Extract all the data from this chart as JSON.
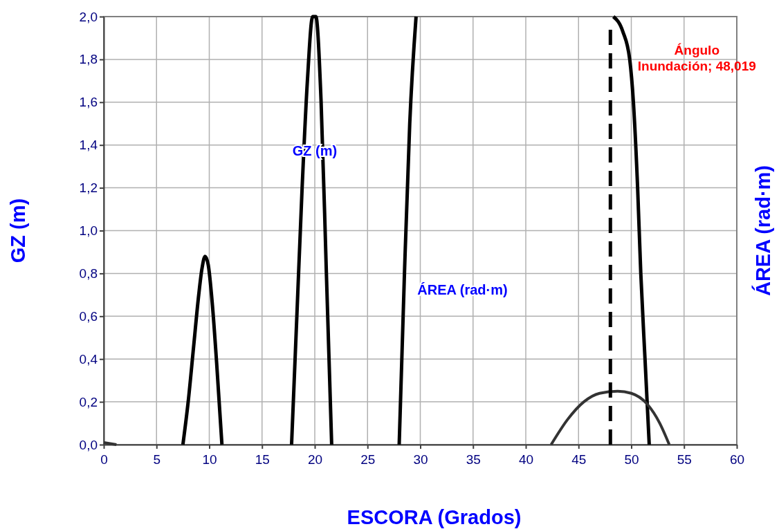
{
  "chart_data": {
    "type": "line",
    "xlabel": "ESCORA (Grados)",
    "ylabel": "GZ (m)",
    "y2label": "ÁREA (rad·m)",
    "xlim": [
      0,
      60
    ],
    "xticks": [
      0,
      5,
      10,
      15,
      20,
      25,
      30,
      35,
      40,
      45,
      50,
      55,
      60
    ],
    "ylim": [
      0,
      2
    ],
    "yticks": [
      {
        "value": 0,
        "label": "0,0"
      },
      {
        "value": 0.2,
        "label": "0,2"
      },
      {
        "value": 0.4,
        "label": "0,4"
      },
      {
        "value": 0.6,
        "label": "0,6"
      },
      {
        "value": 0.8,
        "label": "0,8"
      },
      {
        "value": 1,
        "label": "1,0"
      },
      {
        "value": 1.2,
        "label": "1,2"
      },
      {
        "value": 1.4,
        "label": "1,4"
      },
      {
        "value": 1.6,
        "label": "1,6"
      },
      {
        "value": 1.8,
        "label": "1,8"
      },
      {
        "value": 2,
        "label": "2,0"
      }
    ],
    "grid": true,
    "marker": "none",
    "line_style": "solid",
    "series": [
      {
        "color": "#000000",
        "x": [
          7.5,
          8.0,
          8.5,
          9.0,
          9.3,
          9.6,
          9.9,
          10.3,
          10.7,
          11.2,
          14,
          17.8,
          18.3,
          18.8,
          19.3,
          19.8,
          20.1,
          20.6,
          21.1,
          21.6,
          25,
          28.0,
          28.5,
          29.0,
          29.6,
          40,
          48.3,
          49.2,
          49.85,
          50.2,
          50.6,
          50.9,
          51.3,
          51.7
        ],
        "values": [
          0,
          0.2,
          0.45,
          0.7,
          0.82,
          0.88,
          0.84,
          0.65,
          0.38,
          0,
          null,
          0,
          0.6,
          1.2,
          1.7,
          2.0,
          2.0,
          1.6,
          0.8,
          0,
          null,
          0,
          0.8,
          1.5,
          2.0,
          null,
          2.0,
          1.93,
          1.8,
          1.6,
          1.2,
          0.8,
          0.4,
          0
        ]
      },
      {
        "color": "#333333",
        "x": [
          0,
          1.2,
          20,
          42.4,
          44,
          45.5,
          47,
          48.7,
          50,
          51.5,
          52.7,
          53.6
        ],
        "values": [
          0.01,
          0,
          null,
          0,
          0.12,
          0.2,
          0.24,
          0.25,
          0.24,
          0.19,
          0.1,
          0
        ]
      }
    ],
    "ref_lines": [
      {
        "axis": "x",
        "value": 48.019,
        "label": "Ángulo Inundación; 48,019",
        "color": "#000000",
        "line_style": "dashed"
      }
    ],
    "annotations": [
      "GZ (m)",
      "ÁREA (rad·m)"
    ]
  }
}
